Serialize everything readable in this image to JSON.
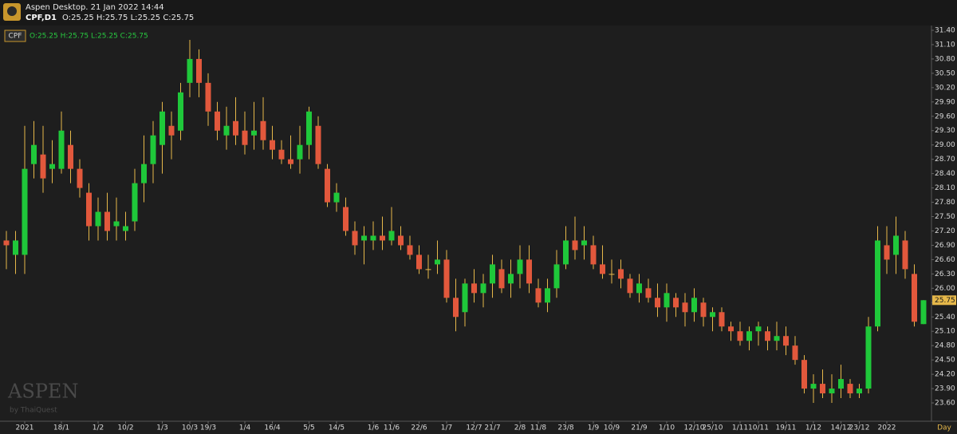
{
  "chart_data": {
    "type": "candlestick",
    "title": "Aspen Desktop. 21 Jan 2022 14:44",
    "symbol_timeframe": "CPF,D1",
    "ohlc_text": "O:25.25 H:25.75 L:25.25 C:25.75",
    "symbol": "CPF",
    "watermark": "ASPEN",
    "watermark_sub": "by ThaiQuest",
    "x_unit": "Day",
    "up_color": "#1fc83a",
    "down_color": "#e2583c",
    "wick_color": "#e6b84a",
    "grid": false,
    "ylim": [
      23.2,
      31.55
    ],
    "yticks": [
      {
        "value": 23.6,
        "label": "23.60"
      },
      {
        "value": 23.9,
        "label": "23.90"
      },
      {
        "value": 24.2,
        "label": "24.20"
      },
      {
        "value": 24.5,
        "label": "24.50"
      },
      {
        "value": 24.8,
        "label": "24.80"
      },
      {
        "value": 25.1,
        "label": "25.10"
      },
      {
        "value": 25.4,
        "label": "25.40"
      },
      {
        "value": 25.7,
        "label": "25.70"
      },
      {
        "value": 26.0,
        "label": "26.00"
      },
      {
        "value": 26.3,
        "label": "26.30"
      },
      {
        "value": 26.6,
        "label": "26.60"
      },
      {
        "value": 26.9,
        "label": "26.90"
      },
      {
        "value": 27.2,
        "label": "27.20"
      },
      {
        "value": 27.5,
        "label": "27.50"
      },
      {
        "value": 27.8,
        "label": "27.80"
      },
      {
        "value": 28.1,
        "label": "28.10"
      },
      {
        "value": 28.4,
        "label": "28.40"
      },
      {
        "value": 28.7,
        "label": "28.70"
      },
      {
        "value": 29.0,
        "label": "29.00"
      },
      {
        "value": 29.3,
        "label": "29.30"
      },
      {
        "value": 29.6,
        "label": "29.60"
      },
      {
        "value": 29.9,
        "label": "29.90"
      },
      {
        "value": 30.2,
        "label": "30.20"
      },
      {
        "value": 30.5,
        "label": "30.50"
      },
      {
        "value": 30.8,
        "label": "30.80"
      },
      {
        "value": 31.1,
        "label": "31.10"
      },
      {
        "value": 31.4,
        "label": "31.40"
      }
    ],
    "categories": [
      null,
      null,
      "2021",
      null,
      null,
      null,
      "18/1",
      null,
      null,
      null,
      "1/2",
      null,
      null,
      "10/2",
      null,
      null,
      null,
      "1/3",
      null,
      null,
      "10/3",
      null,
      "19/3",
      null,
      null,
      null,
      "1/4",
      null,
      null,
      "16/4",
      null,
      null,
      null,
      "5/5",
      null,
      null,
      "14/5",
      null,
      null,
      null,
      "1/6",
      null,
      "11/6",
      null,
      null,
      "22/6",
      null,
      null,
      "1/7",
      null,
      null,
      "12/7",
      null,
      "21/7",
      null,
      null,
      "2/8",
      null,
      "11/8",
      null,
      null,
      "23/8",
      null,
      null,
      "1/9",
      null,
      "10/9",
      null,
      null,
      "21/9",
      null,
      null,
      "1/10",
      null,
      null,
      "12/10",
      null,
      "25/10",
      null,
      null,
      "1/11",
      null,
      "10/11",
      null,
      null,
      "19/11",
      null,
      null,
      "1/12",
      null,
      null,
      "14/12",
      null,
      "23/12",
      null,
      null,
      "2022",
      null,
      null,
      null,
      null
    ],
    "open": [
      27.0,
      26.7,
      26.7,
      28.6,
      28.8,
      28.5,
      28.5,
      29.0,
      28.5,
      28.0,
      27.3,
      27.6,
      27.3,
      27.2,
      27.4,
      28.2,
      28.6,
      29.0,
      29.4,
      29.3,
      30.3,
      30.8,
      30.3,
      29.7,
      29.2,
      29.5,
      29.3,
      29.2,
      29.5,
      29.1,
      28.9,
      28.7,
      28.7,
      29.0,
      29.4,
      28.5,
      27.8,
      27.7,
      27.2,
      27.0,
      27.0,
      27.1,
      27.0,
      27.1,
      26.9,
      26.7,
      26.4,
      26.5,
      26.6,
      25.8,
      25.5,
      26.1,
      25.9,
      26.1,
      26.4,
      26.1,
      26.3,
      26.6,
      26.0,
      25.7,
      26.0,
      26.5,
      27.0,
      26.9,
      26.9,
      26.5,
      26.3,
      26.4,
      26.2,
      25.9,
      26.0,
      25.8,
      25.6,
      25.8,
      25.7,
      25.5,
      25.7,
      25.4,
      25.5,
      25.2,
      25.1,
      24.9,
      25.1,
      25.1,
      24.9,
      25.0,
      24.8,
      24.5,
      23.9,
      24.0,
      23.8,
      23.9,
      24.0,
      23.8,
      23.9,
      25.2,
      26.9,
      26.7,
      27.0,
      26.3,
      25.25
    ],
    "high": [
      27.2,
      27.2,
      29.4,
      29.5,
      29.4,
      29.1,
      29.7,
      29.3,
      28.7,
      28.2,
      27.9,
      28.0,
      27.9,
      27.6,
      28.5,
      29.2,
      29.5,
      29.9,
      29.7,
      30.3,
      31.2,
      31.0,
      30.5,
      29.9,
      29.8,
      30.0,
      29.7,
      29.9,
      30.0,
      29.4,
      29.1,
      29.2,
      29.4,
      29.8,
      29.6,
      28.6,
      28.2,
      27.9,
      27.4,
      27.3,
      27.4,
      27.5,
      27.7,
      27.3,
      27.1,
      26.9,
      26.7,
      27.0,
      26.8,
      26.2,
      26.2,
      26.4,
      26.3,
      26.7,
      26.6,
      26.6,
      26.9,
      26.9,
      26.2,
      26.2,
      26.8,
      27.3,
      27.5,
      27.3,
      27.1,
      26.9,
      26.6,
      26.6,
      26.3,
      26.3,
      26.2,
      26.1,
      26.1,
      25.9,
      25.9,
      26.0,
      25.8,
      25.6,
      25.6,
      25.3,
      25.3,
      25.2,
      25.3,
      25.2,
      25.3,
      25.2,
      25.0,
      24.6,
      24.2,
      24.3,
      24.2,
      24.4,
      24.1,
      24.0,
      25.4,
      27.3,
      27.3,
      27.5,
      27.2,
      26.5,
      25.75
    ],
    "low": [
      26.4,
      26.3,
      26.3,
      28.3,
      28.0,
      28.2,
      28.4,
      28.2,
      27.9,
      27.0,
      27.0,
      27.0,
      27.0,
      27.0,
      27.2,
      27.8,
      28.2,
      28.4,
      28.7,
      29.1,
      30.0,
      30.0,
      29.4,
      29.1,
      28.9,
      29.0,
      28.8,
      28.9,
      28.9,
      28.7,
      28.6,
      28.5,
      28.4,
      28.7,
      28.5,
      27.7,
      27.6,
      27.1,
      26.7,
      26.5,
      26.8,
      26.8,
      26.9,
      26.8,
      26.6,
      26.3,
      26.2,
      26.3,
      25.7,
      25.1,
      25.2,
      25.7,
      25.6,
      25.8,
      25.9,
      25.8,
      26.0,
      25.9,
      25.6,
      25.5,
      25.8,
      26.4,
      26.6,
      26.6,
      26.4,
      26.2,
      26.1,
      26.0,
      25.8,
      25.7,
      25.7,
      25.4,
      25.3,
      25.4,
      25.2,
      25.3,
      25.2,
      25.1,
      25.1,
      24.9,
      24.8,
      24.7,
      24.8,
      24.7,
      24.7,
      24.6,
      24.4,
      23.8,
      23.6,
      23.7,
      23.6,
      23.7,
      23.7,
      23.7,
      23.8,
      25.1,
      26.3,
      26.3,
      26.2,
      25.2,
      25.25
    ],
    "close": [
      26.9,
      27.0,
      28.5,
      29.0,
      28.3,
      28.6,
      29.3,
      28.5,
      28.1,
      27.3,
      27.6,
      27.2,
      27.4,
      27.3,
      28.2,
      28.6,
      29.2,
      29.7,
      29.2,
      30.1,
      30.8,
      30.3,
      29.7,
      29.3,
      29.4,
      29.2,
      29.0,
      29.3,
      29.1,
      28.9,
      28.7,
      28.6,
      29.0,
      29.7,
      28.6,
      27.8,
      28.0,
      27.2,
      26.9,
      27.1,
      27.1,
      27.0,
      27.2,
      26.9,
      26.7,
      26.4,
      26.4,
      26.6,
      25.8,
      25.4,
      26.1,
      25.9,
      26.1,
      26.5,
      26.0,
      26.3,
      26.6,
      26.1,
      25.7,
      26.0,
      26.5,
      27.0,
      26.8,
      27.0,
      26.5,
      26.3,
      26.3,
      26.2,
      25.9,
      26.1,
      25.8,
      25.6,
      25.9,
      25.6,
      25.5,
      25.8,
      25.4,
      25.5,
      25.2,
      25.1,
      24.9,
      25.1,
      25.2,
      24.9,
      25.0,
      24.8,
      24.5,
      23.9,
      24.0,
      23.8,
      23.9,
      24.1,
      23.8,
      23.9,
      25.2,
      27.0,
      26.6,
      27.1,
      26.4,
      25.3,
      25.75
    ]
  }
}
